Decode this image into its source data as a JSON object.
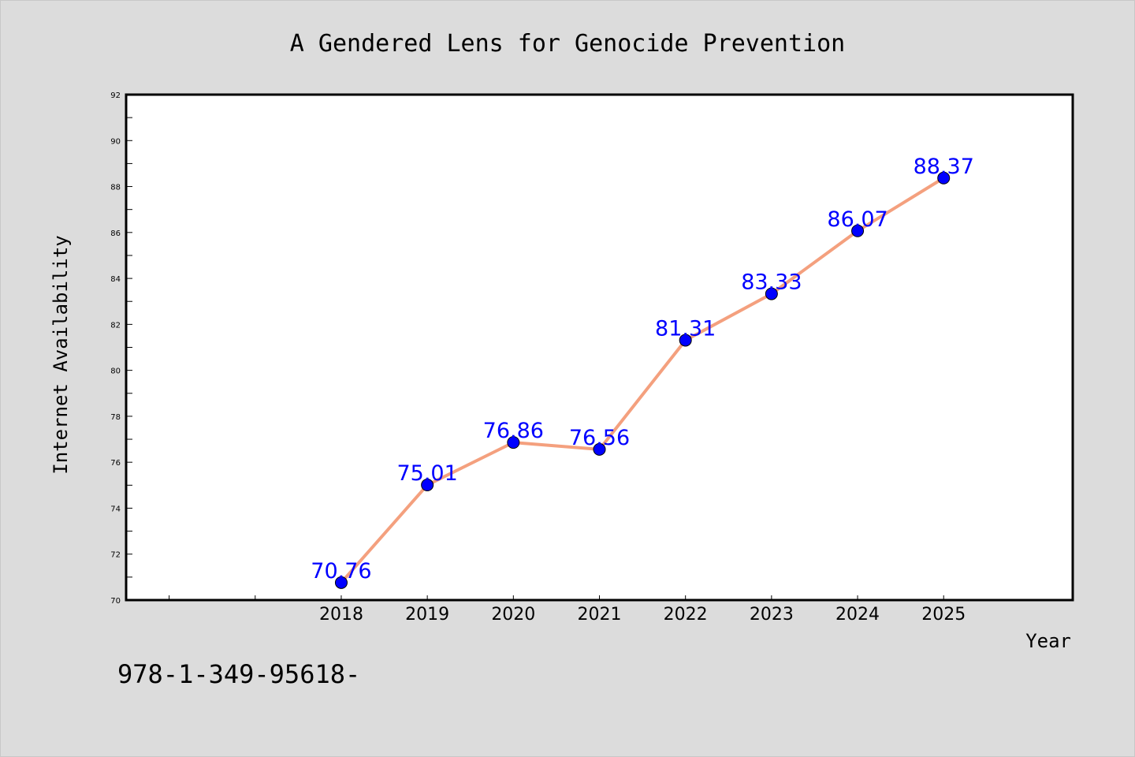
{
  "chart_data": {
    "type": "line",
    "title": "A Gendered Lens for Genocide Prevention",
    "xlabel": "Year",
    "ylabel": "Internet Availability",
    "x": [
      2018,
      2019,
      2020,
      2021,
      2022,
      2023,
      2024,
      2025
    ],
    "x_ticks": [
      "2018",
      "2019",
      "2020",
      "2021",
      "2022",
      "2023",
      "2024",
      "2025"
    ],
    "xlim": [
      2015.5,
      2026.5
    ],
    "series": [
      {
        "values": [
          70.76,
          75.01,
          76.86,
          76.56,
          81.31,
          83.33,
          86.07,
          88.37
        ],
        "labels": [
          "70.76",
          "75.01",
          "76.86",
          "76.56",
          "81.31",
          "83.33",
          "86.07",
          "88.37"
        ],
        "line_color": "#f4a07e",
        "marker_color": "#0000ff"
      }
    ],
    "ylim": [
      70,
      92
    ],
    "y_ticks": [
      "70",
      "72",
      "74",
      "76",
      "78",
      "80",
      "82",
      "84",
      "86",
      "88",
      "90",
      "92"
    ],
    "grid": false,
    "legend": "none",
    "label_color": "#0000ff",
    "background": "#dcdcdc",
    "plot_background": "#ffffff"
  },
  "footnote": "978-1-349-95618-"
}
